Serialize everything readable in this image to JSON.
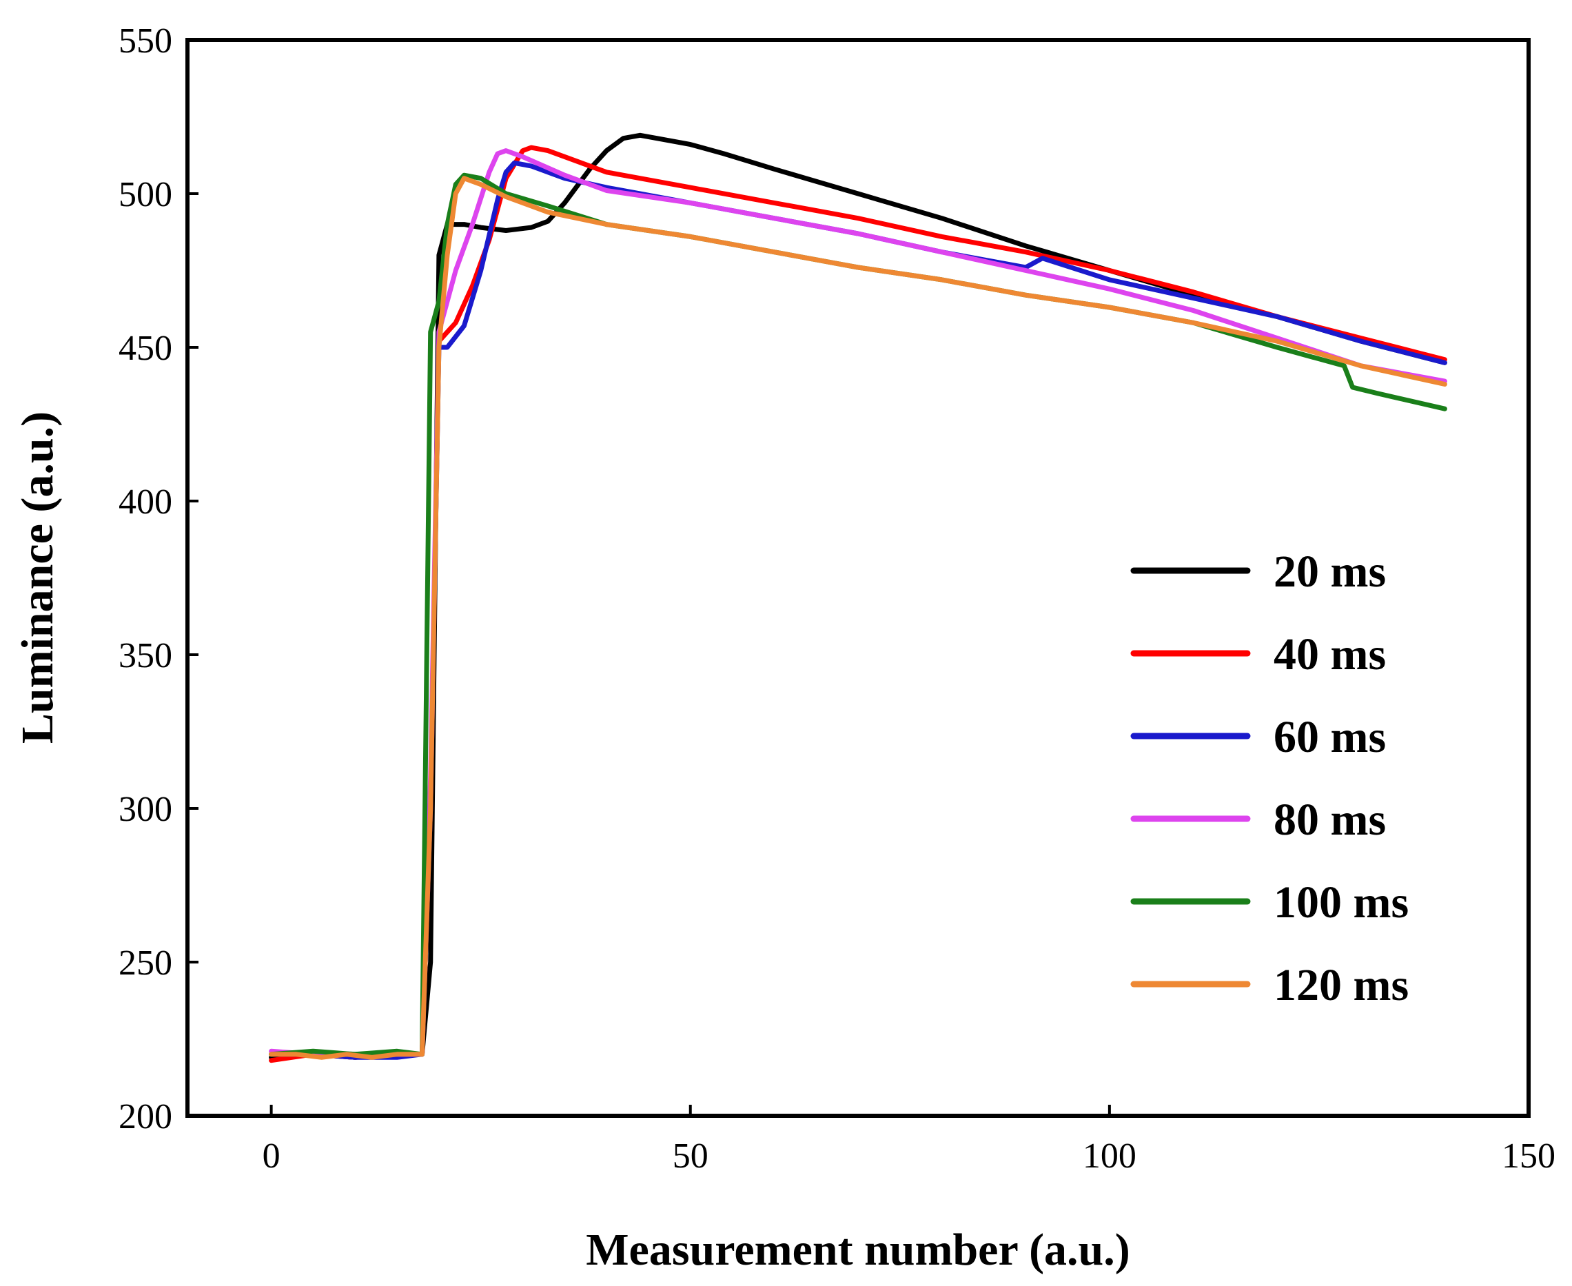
{
  "chart_data": {
    "type": "line",
    "title": "",
    "xlabel": "Measurement number (a.u.)",
    "ylabel": "Luminance (a.u.)",
    "xlim": [
      -10,
      150
    ],
    "ylim": [
      200,
      550
    ],
    "xticks": [
      0,
      50,
      100,
      150
    ],
    "yticks": [
      200,
      250,
      300,
      350,
      400,
      450,
      500,
      550
    ],
    "grid": false,
    "legend_position": "right",
    "series": [
      {
        "name": "20 ms",
        "color": "#000000",
        "points": [
          [
            0,
            219
          ],
          [
            5,
            220
          ],
          [
            10,
            219
          ],
          [
            15,
            220
          ],
          [
            18,
            220
          ],
          [
            19,
            250
          ],
          [
            20,
            480
          ],
          [
            21,
            490
          ],
          [
            23,
            490
          ],
          [
            25,
            489
          ],
          [
            28,
            488
          ],
          [
            31,
            489
          ],
          [
            33,
            491
          ],
          [
            35,
            497
          ],
          [
            38,
            508
          ],
          [
            40,
            514
          ],
          [
            42,
            518
          ],
          [
            44,
            519
          ],
          [
            46,
            518
          ],
          [
            50,
            516
          ],
          [
            54,
            513
          ],
          [
            60,
            508
          ],
          [
            70,
            500
          ],
          [
            80,
            492
          ],
          [
            90,
            483
          ],
          [
            100,
            475
          ],
          [
            110,
            467
          ],
          [
            120,
            460
          ],
          [
            130,
            452
          ],
          [
            140,
            445
          ]
        ]
      },
      {
        "name": "40 ms",
        "color": "#ff0000",
        "points": [
          [
            0,
            218
          ],
          [
            5,
            220
          ],
          [
            10,
            219
          ],
          [
            15,
            220
          ],
          [
            18,
            220
          ],
          [
            19,
            300
          ],
          [
            20,
            452
          ],
          [
            22,
            458
          ],
          [
            24,
            470
          ],
          [
            26,
            485
          ],
          [
            28,
            505
          ],
          [
            30,
            514
          ],
          [
            31,
            515
          ],
          [
            33,
            514
          ],
          [
            36,
            511
          ],
          [
            40,
            507
          ],
          [
            50,
            502
          ],
          [
            60,
            497
          ],
          [
            70,
            492
          ],
          [
            80,
            486
          ],
          [
            90,
            481
          ],
          [
            100,
            475
          ],
          [
            110,
            468
          ],
          [
            120,
            460
          ],
          [
            130,
            453
          ],
          [
            140,
            446
          ]
        ]
      },
      {
        "name": "60 ms",
        "color": "#1a1acc",
        "points": [
          [
            0,
            220
          ],
          [
            5,
            220
          ],
          [
            10,
            219
          ],
          [
            15,
            219
          ],
          [
            18,
            220
          ],
          [
            19,
            300
          ],
          [
            20,
            450
          ],
          [
            21,
            450
          ],
          [
            23,
            457
          ],
          [
            25,
            475
          ],
          [
            27,
            498
          ],
          [
            28,
            507
          ],
          [
            29,
            510
          ],
          [
            31,
            509
          ],
          [
            35,
            505
          ],
          [
            40,
            502
          ],
          [
            50,
            497
          ],
          [
            60,
            492
          ],
          [
            70,
            487
          ],
          [
            80,
            481
          ],
          [
            90,
            476
          ],
          [
            92,
            479
          ],
          [
            100,
            472
          ],
          [
            110,
            466
          ],
          [
            120,
            460
          ],
          [
            130,
            452
          ],
          [
            140,
            445
          ]
        ]
      },
      {
        "name": "80 ms",
        "color": "#dd44ee",
        "points": [
          [
            0,
            221
          ],
          [
            5,
            220
          ],
          [
            10,
            220
          ],
          [
            15,
            220
          ],
          [
            18,
            220
          ],
          [
            19,
            310
          ],
          [
            20,
            455
          ],
          [
            22,
            475
          ],
          [
            24,
            490
          ],
          [
            26,
            507
          ],
          [
            27,
            513
          ],
          [
            28,
            514
          ],
          [
            30,
            512
          ],
          [
            35,
            506
          ],
          [
            40,
            501
          ],
          [
            50,
            497
          ],
          [
            60,
            492
          ],
          [
            70,
            487
          ],
          [
            80,
            481
          ],
          [
            90,
            475
          ],
          [
            100,
            469
          ],
          [
            110,
            462
          ],
          [
            120,
            453
          ],
          [
            130,
            444
          ],
          [
            140,
            439
          ]
        ]
      },
      {
        "name": "100 ms",
        "color": "#1a7f1a",
        "points": [
          [
            0,
            220
          ],
          [
            5,
            221
          ],
          [
            10,
            220
          ],
          [
            15,
            221
          ],
          [
            18,
            220
          ],
          [
            19,
            455
          ],
          [
            20,
            465
          ],
          [
            21,
            490
          ],
          [
            22,
            503
          ],
          [
            23,
            506
          ],
          [
            25,
            505
          ],
          [
            28,
            500
          ],
          [
            33,
            496
          ],
          [
            40,
            490
          ],
          [
            50,
            486
          ],
          [
            60,
            481
          ],
          [
            70,
            476
          ],
          [
            80,
            472
          ],
          [
            90,
            467
          ],
          [
            100,
            463
          ],
          [
            110,
            458
          ],
          [
            120,
            450
          ],
          [
            128,
            444
          ],
          [
            129,
            437
          ],
          [
            132,
            435
          ],
          [
            140,
            430
          ]
        ]
      },
      {
        "name": "120 ms",
        "color": "#ee8833",
        "points": [
          [
            0,
            220
          ],
          [
            3,
            220
          ],
          [
            6,
            219
          ],
          [
            9,
            220
          ],
          [
            12,
            219
          ],
          [
            15,
            220
          ],
          [
            18,
            220
          ],
          [
            19,
            300
          ],
          [
            20,
            450
          ],
          [
            21,
            480
          ],
          [
            22,
            500
          ],
          [
            23,
            505
          ],
          [
            25,
            503
          ],
          [
            28,
            499
          ],
          [
            33,
            494
          ],
          [
            40,
            490
          ],
          [
            50,
            486
          ],
          [
            60,
            481
          ],
          [
            70,
            476
          ],
          [
            80,
            472
          ],
          [
            90,
            467
          ],
          [
            100,
            463
          ],
          [
            110,
            458
          ],
          [
            120,
            452
          ],
          [
            130,
            444
          ],
          [
            140,
            438
          ]
        ]
      }
    ]
  }
}
